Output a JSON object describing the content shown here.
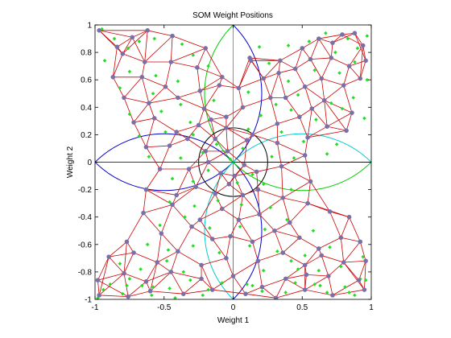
{
  "chart_data": {
    "type": "scatter",
    "title": "SOM Weight Positions",
    "xlabel": "Weight 1",
    "ylabel": "Weight 2",
    "xlim": [
      -1,
      1
    ],
    "ylim": [
      -1,
      1
    ],
    "xticks": [
      "-1",
      "-0.5",
      "0",
      "0.5",
      "1"
    ],
    "yticks": [
      "1",
      "0.8",
      "0.6",
      "0.4",
      "0.2",
      "0",
      "-0.2",
      "-0.4",
      "-0.6",
      "-0.8",
      "-1"
    ],
    "colors": {
      "network_edges": "#cc0000",
      "neurons": "#7b6fa8",
      "samples": "#22dd22",
      "arc_blue": "#0000cc",
      "arc_green": "#00cc00",
      "arc_cyan": "#00cccc",
      "inner_circle": "#000000",
      "h_axis_left": "#cc0000",
      "h_axis_right": "#0000cc",
      "v_axis_top": "#00cccc",
      "v_axis_bottom": "#00cc00"
    },
    "reference_curves": [
      {
        "shape": "circle",
        "center": [
          -0.5,
          0.5
        ],
        "radius": 0.707,
        "part": "lower-right half",
        "color": "arc_blue"
      },
      {
        "shape": "circle",
        "center": [
          -0.5,
          -0.5
        ],
        "radius": 0.707,
        "part": "upper-right half",
        "color": "arc_blue"
      },
      {
        "shape": "circle",
        "center": [
          0.5,
          0.5
        ],
        "radius": 0.707,
        "part": "lower-left half",
        "color": "arc_green"
      },
      {
        "shape": "circle",
        "center": [
          0.5,
          -0.5
        ],
        "radius": 0.707,
        "part": "upper-left half",
        "color": "arc_cyan"
      },
      {
        "shape": "circle",
        "center": [
          0,
          0
        ],
        "radius": 0.25,
        "part": "full",
        "color": "inner_circle"
      }
    ],
    "series": [
      {
        "kind": "neurons",
        "x": [
          -0.97,
          -0.84,
          -0.73,
          -0.62,
          -0.44,
          -0.2,
          0.12,
          0.34,
          0.5,
          0.62,
          0.72,
          0.79,
          0.88,
          0.94,
          -0.8,
          -0.64,
          -0.45,
          -0.26,
          -0.08,
          0.13,
          0.33,
          0.45,
          0.56,
          0.71,
          0.84,
          0.96,
          -0.87,
          -0.66,
          -0.49,
          -0.24,
          -0.1,
          0.04,
          0.22,
          0.38,
          0.52,
          0.64,
          0.8,
          0.92,
          -0.79,
          -0.61,
          -0.4,
          -0.21,
          -0.05,
          0.07,
          0.27,
          0.48,
          0.57,
          0.66,
          0.86,
          -0.72,
          -0.57,
          -0.41,
          -0.25,
          -0.16,
          -0.05,
          0.14,
          0.32,
          0.54,
          0.68,
          0.82,
          -0.63,
          -0.46,
          -0.33,
          -0.2,
          -0.13,
          -0.04,
          0.1,
          0.32,
          0.52,
          -0.53,
          -0.32,
          -0.18,
          -0.09,
          0.01,
          0.08,
          0.17,
          0.35,
          -0.63,
          -0.41,
          -0.27,
          -0.13,
          -0.03,
          0.07,
          0.18,
          0.36,
          0.56,
          -0.65,
          -0.44,
          -0.24,
          -0.08,
          0.04,
          0.19,
          0.41,
          0.54,
          0.7,
          0.84,
          -0.77,
          -0.52,
          -0.3,
          -0.15,
          -0.02,
          0.14,
          0.3,
          0.48,
          0.62,
          0.78,
          0.92,
          -0.9,
          -0.72,
          -0.55,
          -0.4,
          -0.23,
          -0.05,
          0.18,
          0.36,
          0.52,
          0.64,
          0.8,
          0.96,
          -0.98,
          -0.79,
          -0.63,
          -0.45,
          -0.23,
          0.0,
          0.21,
          0.38,
          0.53,
          0.69,
          0.91,
          -0.97,
          -0.76,
          -0.6,
          -0.36,
          -0.15,
          0.09,
          0.31,
          0.52,
          0.72,
          0.95
        ],
        "y": [
          0.96,
          0.84,
          0.91,
          0.96,
          0.92,
          0.83,
          0.76,
          0.74,
          0.83,
          0.9,
          0.87,
          0.93,
          0.94,
          0.85,
          0.79,
          0.73,
          0.73,
          0.69,
          0.62,
          0.74,
          0.65,
          0.68,
          0.75,
          0.76,
          0.7,
          0.74,
          0.62,
          0.62,
          0.55,
          0.52,
          0.56,
          0.54,
          0.61,
          0.47,
          0.55,
          0.61,
          0.56,
          0.61,
          0.47,
          0.43,
          0.47,
          0.39,
          0.33,
          0.4,
          0.47,
          0.33,
          0.39,
          0.45,
          0.36,
          0.29,
          0.32,
          0.22,
          0.27,
          0.31,
          0.25,
          0.2,
          0.28,
          0.18,
          0.26,
          0.23,
          0.11,
          0.12,
          0.17,
          0.08,
          0.17,
          0.08,
          0.16,
          0.14,
          0.05,
          -0.05,
          -0.05,
          0.0,
          -0.08,
          -0.1,
          -0.02,
          -0.07,
          -0.03,
          -0.2,
          -0.24,
          -0.18,
          -0.23,
          -0.16,
          -0.24,
          -0.2,
          -0.26,
          -0.14,
          -0.37,
          -0.31,
          -0.42,
          -0.34,
          -0.42,
          -0.38,
          -0.44,
          -0.3,
          -0.36,
          -0.4,
          -0.58,
          -0.52,
          -0.47,
          -0.56,
          -0.54,
          -0.58,
          -0.5,
          -0.55,
          -0.63,
          -0.55,
          -0.58,
          -0.69,
          -0.66,
          -0.73,
          -0.65,
          -0.75,
          -0.7,
          -0.72,
          -0.66,
          -0.75,
          -0.68,
          -0.73,
          -0.72,
          -0.86,
          -0.81,
          -0.87,
          -0.8,
          -0.85,
          -0.83,
          -0.91,
          -0.85,
          -0.82,
          -0.83,
          -0.86,
          -0.97,
          -0.98,
          -0.94,
          -0.96,
          -0.93,
          -0.96,
          -0.99,
          -0.93,
          -0.97,
          -0.93
        ]
      },
      {
        "kind": "samples",
        "x": [
          -0.95,
          -0.86,
          -0.76,
          -0.68,
          -0.57,
          -0.37,
          -0.29,
          0.19,
          0.4,
          0.55,
          0.67,
          0.74,
          0.83,
          0.9,
          0.97,
          -0.93,
          -0.75,
          -0.56,
          -0.4,
          -0.18,
          0.26,
          0.4,
          0.59,
          0.77,
          0.88,
          0.97,
          -0.82,
          -0.58,
          -0.38,
          -0.14,
          0.11,
          0.31,
          0.47,
          0.71,
          0.87,
          -0.75,
          -0.52,
          -0.31,
          0.2,
          0.42,
          0.6,
          0.79,
          0.95,
          -0.68,
          -0.49,
          -0.29,
          -0.12,
          0.11,
          0.35,
          0.51,
          0.75,
          -0.61,
          -0.38,
          -0.22,
          -0.02,
          0.07,
          0.28,
          0.44,
          0.68,
          -0.44,
          -0.29,
          -0.18,
          0.03,
          0.14,
          0.22,
          -0.46,
          -0.28,
          -0.11,
          0.06,
          0.27,
          0.42,
          -0.53,
          -0.35,
          -0.17,
          0.05,
          0.23,
          0.39,
          0.58,
          -0.62,
          -0.47,
          -0.29,
          -0.1,
          0.12,
          0.32,
          0.52,
          0.7,
          -0.82,
          -0.67,
          -0.48,
          -0.36,
          0.22,
          0.42,
          0.62,
          0.78,
          0.94,
          -0.89,
          -0.75,
          -0.58,
          -0.31,
          -0.08,
          0.14,
          0.47,
          0.63,
          0.81,
          0.96,
          -0.94,
          -0.8,
          -0.66,
          -0.46,
          -0.22,
          0.1,
          0.38,
          0.59,
          0.84,
          0.92,
          -0.98,
          -0.77,
          -0.59,
          -0.42,
          -0.18,
          0.21,
          0.45,
          0.68,
          0.88
        ],
        "y": [
          0.97,
          0.9,
          0.83,
          0.88,
          0.9,
          0.86,
          0.78,
          0.84,
          0.85,
          0.88,
          0.94,
          0.8,
          0.9,
          0.83,
          0.92,
          0.74,
          0.66,
          0.63,
          0.59,
          0.7,
          0.72,
          0.59,
          0.67,
          0.65,
          0.73,
          0.6,
          0.54,
          0.5,
          0.42,
          0.45,
          0.51,
          0.42,
          0.49,
          0.43,
          0.47,
          0.35,
          0.37,
          0.29,
          0.34,
          0.38,
          0.31,
          0.39,
          0.32,
          0.19,
          0.22,
          0.2,
          0.13,
          0.24,
          0.22,
          0.15,
          0.13,
          0.04,
          0.03,
          0.07,
          0.02,
          0.1,
          0.04,
          0.03,
          0.06,
          -0.12,
          -0.14,
          -0.06,
          -0.15,
          -0.09,
          -0.16,
          -0.29,
          -0.32,
          -0.28,
          -0.31,
          -0.33,
          -0.2,
          -0.46,
          -0.4,
          -0.48,
          -0.47,
          -0.49,
          -0.42,
          -0.5,
          -0.6,
          -0.64,
          -0.61,
          -0.66,
          -0.61,
          -0.65,
          -0.68,
          -0.62,
          -0.74,
          -0.78,
          -0.72,
          -0.8,
          -0.79,
          -0.72,
          -0.79,
          -0.76,
          -0.69,
          -0.89,
          -0.85,
          -0.91,
          -0.86,
          -0.88,
          -0.9,
          -0.78,
          -0.9,
          -0.91,
          -0.86,
          -0.93,
          -0.96,
          -0.9,
          -0.92,
          -0.97,
          -0.89,
          -0.95,
          -0.89,
          -0.95,
          -0.85,
          -0.99,
          -0.9,
          -0.97,
          -0.99,
          -0.93,
          -0.94,
          -0.88,
          -0.95,
          -0.97
        ]
      }
    ]
  }
}
